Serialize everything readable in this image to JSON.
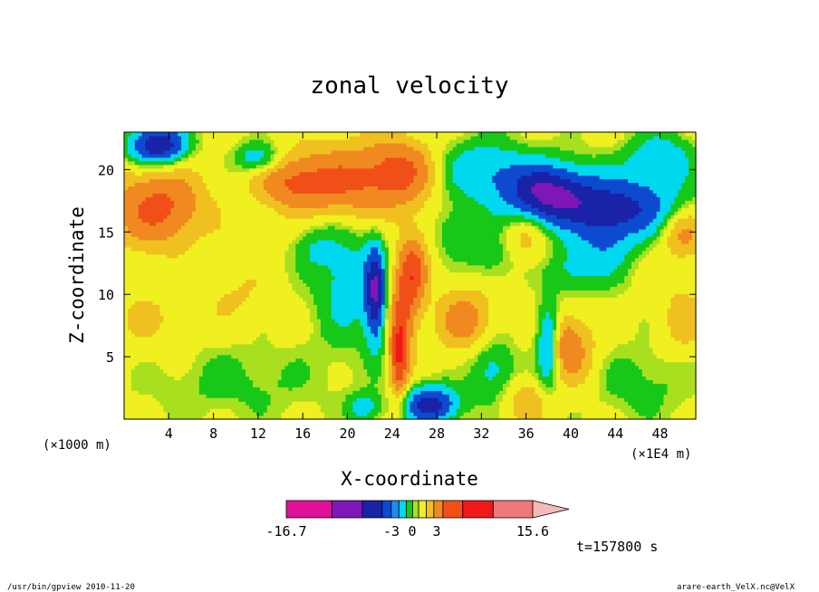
{
  "chart_data": {
    "type": "heatmap",
    "title": "zonal velocity",
    "xlabel": "X-coordinate",
    "ylabel": "Z-coordinate",
    "x_unit_left": "(×1000 m)",
    "x_unit_right": "(×1E4 m)",
    "xticks": [
      "4",
      "8",
      "12",
      "16",
      "20",
      "24",
      "28",
      "32",
      "36",
      "40",
      "44",
      "48"
    ],
    "xtick_values": [
      4,
      8,
      12,
      16,
      20,
      24,
      28,
      32,
      36,
      40,
      44,
      48
    ],
    "yticks": [
      "5",
      "10",
      "15",
      "20"
    ],
    "ytick_values": [
      5,
      10,
      15,
      20
    ],
    "xlim": [
      0,
      51.2
    ],
    "ylim": [
      0,
      23
    ],
    "colorbar": {
      "colors": [
        "#e0109a",
        "#7f16b8",
        "#1a22a8",
        "#0c4ad0",
        "#1e8cf0",
        "#00d8f0",
        "#18c818",
        "#a8e020",
        "#f0f020",
        "#f0c020",
        "#f08a20",
        "#f05018",
        "#f01818",
        "#f07878",
        "#f6b8b8"
      ],
      "labels": [
        "-16.7",
        "-3",
        "0",
        "3",
        "15.6"
      ],
      "range": [
        -16.7,
        15.6
      ]
    },
    "field_levels": [
      {
        "v": 0.5,
        "color": "#f0f020"
      },
      {
        "v": 3.0,
        "color": "#f0c020"
      },
      {
        "v": 5.5,
        "color": "#f08a20"
      },
      {
        "v": 9.0,
        "color": "#f05018"
      },
      {
        "v": 12.5,
        "color": "#f01818"
      },
      {
        "v": -0.5,
        "color": "#18c818"
      },
      {
        "v": -2.5,
        "color": "#00d8f0"
      },
      {
        "v": -5.5,
        "color": "#0c4ad0"
      },
      {
        "v": -9.0,
        "color": "#1a22a8"
      },
      {
        "v": -12.5,
        "color": "#7f16b8"
      }
    ],
    "field_base": 1.2,
    "field_blobs": [
      {
        "x": 3,
        "z": 17,
        "a": 9,
        "sx": 4,
        "sz": 3
      },
      {
        "x": 20,
        "z": 19,
        "a": 8,
        "sx": 5,
        "sz": 3
      },
      {
        "x": 15,
        "z": 19,
        "a": 6,
        "sx": 3,
        "sz": 2
      },
      {
        "x": 25,
        "z": 20,
        "a": 7,
        "sx": 3,
        "sz": 2.5
      },
      {
        "x": 3,
        "z": 22,
        "a": -14,
        "sx": 2.5,
        "sz": 1.5
      },
      {
        "x": 12,
        "z": 21,
        "a": -6,
        "sx": 2,
        "sz": 1.2
      },
      {
        "x": 38,
        "z": 18,
        "a": -14,
        "sx": 4,
        "sz": 2.5
      },
      {
        "x": 45,
        "z": 17,
        "a": -10,
        "sx": 5,
        "sz": 2.5
      },
      {
        "x": 32,
        "z": 20,
        "a": -6,
        "sx": 4,
        "sz": 2.5
      },
      {
        "x": 48,
        "z": 21,
        "a": -6,
        "sx": 3,
        "sz": 2
      },
      {
        "x": 20,
        "z": 11,
        "a": -5,
        "sx": 3,
        "sz": 5
      },
      {
        "x": 17,
        "z": 14,
        "a": -3,
        "sx": 2,
        "sz": 2
      },
      {
        "x": 22.5,
        "z": 10,
        "a": -12,
        "sx": 0.9,
        "sz": 4
      },
      {
        "x": 26,
        "z": 12,
        "a": 8,
        "sx": 1.2,
        "sz": 3
      },
      {
        "x": 25,
        "z": 9,
        "a": 7,
        "sx": 1.2,
        "sz": 4
      },
      {
        "x": 24.6,
        "z": 5,
        "a": 10,
        "sx": 0.8,
        "sz": 3.5
      },
      {
        "x": 30.5,
        "z": 8,
        "a": 6,
        "sx": 2.5,
        "sz": 2.5
      },
      {
        "x": 30,
        "z": 15,
        "a": -4,
        "sx": 2,
        "sz": 2
      },
      {
        "x": 33,
        "z": 13,
        "a": -3,
        "sx": 2,
        "sz": 2
      },
      {
        "x": 38,
        "z": 6,
        "a": -8,
        "sx": 1,
        "sz": 3.5
      },
      {
        "x": 39.5,
        "z": 6,
        "a": 6,
        "sx": 1.5,
        "sz": 2.5
      },
      {
        "x": 41,
        "z": 5,
        "a": 3,
        "sx": 2,
        "sz": 3
      },
      {
        "x": 43,
        "z": 14,
        "a": -5,
        "sx": 2.5,
        "sz": 3
      },
      {
        "x": 40,
        "z": 12,
        "a": -4,
        "sx": 2,
        "sz": 2
      },
      {
        "x": 33,
        "z": 4,
        "a": -5,
        "sx": 2,
        "sz": 2.5
      },
      {
        "x": 36,
        "z": 1.5,
        "a": 4,
        "sx": 2,
        "sz": 1.8
      },
      {
        "x": 27.5,
        "z": 1.2,
        "a": -12,
        "sx": 2.5,
        "sz": 1.5
      },
      {
        "x": 21.5,
        "z": 1,
        "a": -5,
        "sx": 1.5,
        "sz": 1.2
      },
      {
        "x": 46,
        "z": 3,
        "a": -2.5,
        "sx": 5,
        "sz": 3
      },
      {
        "x": 10,
        "z": 3,
        "a": -2.2,
        "sx": 8,
        "sz": 3
      },
      {
        "x": 2,
        "z": 8,
        "a": 2,
        "sx": 4,
        "sz": 3
      },
      {
        "x": 10,
        "z": 10,
        "a": 2,
        "sx": 3,
        "sz": 2.5
      },
      {
        "x": 50,
        "z": 8,
        "a": 3,
        "sx": 2,
        "sz": 3
      },
      {
        "x": 50,
        "z": 15,
        "a": 6,
        "sx": 2,
        "sz": 2
      },
      {
        "x": 36,
        "z": 15,
        "a": 4,
        "sx": 2,
        "sz": 2
      }
    ],
    "time_label": "t=157800 s",
    "footer_left": "/usr/bin/gpview   2010-11-20",
    "footer_right": "arare-earth_VelX.nc@VelX"
  }
}
